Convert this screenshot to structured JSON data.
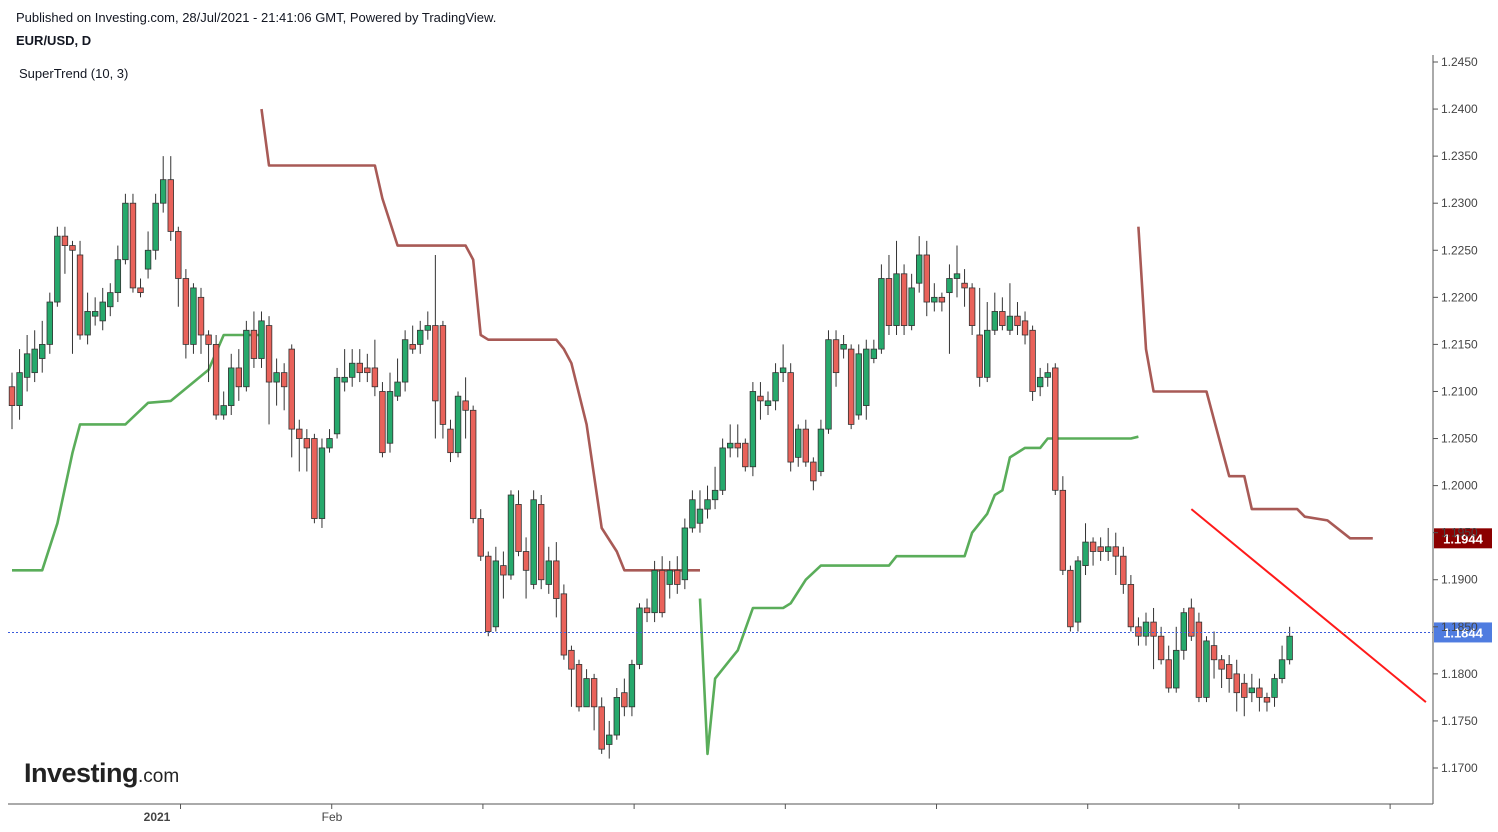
{
  "header": {
    "published": "Published on Investing.com, 28/Jul/2021 - 21:41:06 GMT, Powered by TradingView.",
    "symbol": "EUR/USD, D",
    "indicator": "SuperTrend (10, 3)"
  },
  "logo": {
    "brand": "Investing",
    "suffix": ".com"
  },
  "colors": {
    "up": "#26a96c",
    "down": "#e9625a",
    "trend_up": "#5aad5a",
    "trend_down": "#a85a56",
    "trendline": "#ff1a1a",
    "price_badge": "#4f7ce0",
    "supertrend_badge": "#8b0000"
  },
  "chart_data": {
    "type": "candlestick",
    "ylim": [
      1.1675,
      1.2455
    ],
    "y_ticks": [
      "1.2450",
      "1.2400",
      "1.2350",
      "1.2300",
      "1.2250",
      "1.2200",
      "1.2150",
      "1.2100",
      "1.2050",
      "1.2000",
      "1.1950",
      "1.1900",
      "1.1850",
      "1.1800",
      "1.1750",
      "1.1700"
    ],
    "x_labels": [
      {
        "label": "2021",
        "index": 17,
        "bold": true
      },
      {
        "label": "Feb",
        "index": 37,
        "bold": false
      }
    ],
    "last_price": "1.1844",
    "supertrend_value": "1.1944",
    "candles": [
      [
        1.2105,
        1.2085,
        1.212,
        1.206
      ],
      [
        1.2085,
        1.212,
        1.2145,
        1.207
      ],
      [
        1.2115,
        1.214,
        1.216,
        1.21
      ],
      [
        1.212,
        1.2145,
        1.2165,
        1.211
      ],
      [
        1.2135,
        1.215,
        1.2175,
        1.212
      ],
      [
        1.215,
        1.2195,
        1.2205,
        1.214
      ],
      [
        1.2195,
        1.2265,
        1.2275,
        1.219
      ],
      [
        1.2265,
        1.2255,
        1.2275,
        1.2225
      ],
      [
        1.2255,
        1.225,
        1.226,
        1.214
      ],
      [
        1.2245,
        1.216,
        1.226,
        1.2155
      ],
      [
        1.216,
        1.2185,
        1.2205,
        1.215
      ],
      [
        1.218,
        1.2185,
        1.22,
        1.217
      ],
      [
        1.2175,
        1.2195,
        1.221,
        1.2165
      ],
      [
        1.219,
        1.2205,
        1.2215,
        1.218
      ],
      [
        1.2205,
        1.224,
        1.2255,
        1.2195
      ],
      [
        1.224,
        1.23,
        1.231,
        1.2235
      ],
      [
        1.23,
        1.221,
        1.231,
        1.2205
      ],
      [
        1.221,
        1.2205,
        1.222,
        1.22
      ],
      [
        1.223,
        1.225,
        1.227,
        1.222
      ],
      [
        1.225,
        1.23,
        1.231,
        1.224
      ],
      [
        1.23,
        1.2325,
        1.235,
        1.229
      ],
      [
        1.2325,
        1.227,
        1.235,
        1.226
      ],
      [
        1.227,
        1.222,
        1.2275,
        1.219
      ],
      [
        1.222,
        1.215,
        1.223,
        1.2135
      ],
      [
        1.215,
        1.221,
        1.2215,
        1.214
      ],
      [
        1.22,
        1.216,
        1.221,
        1.214
      ],
      [
        1.216,
        1.215,
        1.2165,
        1.211
      ],
      [
        1.215,
        1.2075,
        1.216,
        1.207
      ],
      [
        1.2075,
        1.2085,
        1.21,
        1.207
      ],
      [
        1.2085,
        1.2125,
        1.214,
        1.2075
      ],
      [
        1.2125,
        1.2105,
        1.2145,
        1.209
      ],
      [
        1.2105,
        1.2165,
        1.2175,
        1.21
      ],
      [
        1.2165,
        1.2135,
        1.2185,
        1.2125
      ],
      [
        1.2135,
        1.2175,
        1.2185,
        1.2125
      ],
      [
        1.217,
        1.211,
        1.218,
        1.2065
      ],
      [
        1.211,
        1.212,
        1.2135,
        1.2085
      ],
      [
        1.212,
        1.2105,
        1.213,
        1.208
      ],
      [
        1.2145,
        1.206,
        1.215,
        1.203
      ],
      [
        1.206,
        1.205,
        1.207,
        1.2015
      ],
      [
        1.205,
        1.204,
        1.206,
        1.2015
      ],
      [
        1.205,
        1.1965,
        1.2055,
        1.196
      ],
      [
        1.1965,
        1.204,
        1.205,
        1.1955
      ],
      [
        1.204,
        1.205,
        1.206,
        1.2035
      ],
      [
        1.2055,
        1.2115,
        1.2125,
        1.205
      ],
      [
        1.211,
        1.2115,
        1.2145,
        1.21
      ],
      [
        1.2115,
        1.213,
        1.2145,
        1.2105
      ],
      [
        1.213,
        1.212,
        1.2145,
        1.211
      ],
      [
        1.2125,
        1.212,
        1.214,
        1.211
      ],
      [
        1.2125,
        1.2105,
        1.2155,
        1.2095
      ],
      [
        1.21,
        1.2035,
        1.211,
        1.203
      ],
      [
        1.2045,
        1.21,
        1.212,
        1.2035
      ],
      [
        1.2095,
        1.211,
        1.2135,
        1.209
      ],
      [
        1.211,
        1.2155,
        1.2165,
        1.21
      ],
      [
        1.215,
        1.2145,
        1.217,
        1.214
      ],
      [
        1.215,
        1.2165,
        1.2175,
        1.214
      ],
      [
        1.2165,
        1.217,
        1.2185,
        1.2155
      ],
      [
        1.217,
        1.209,
        1.2245,
        1.205
      ],
      [
        1.217,
        1.2065,
        1.2175,
        1.205
      ],
      [
        1.206,
        1.2035,
        1.207,
        1.2025
      ],
      [
        1.2035,
        1.2095,
        1.21,
        1.203
      ],
      [
        1.209,
        1.208,
        1.2115,
        1.205
      ],
      [
        1.208,
        1.1965,
        1.2085,
        1.196
      ],
      [
        1.1965,
        1.1925,
        1.1975,
        1.192
      ],
      [
        1.1925,
        1.1845,
        1.193,
        1.184
      ],
      [
        1.185,
        1.192,
        1.1935,
        1.1845
      ],
      [
        1.1915,
        1.1905,
        1.193,
        1.188
      ],
      [
        1.1905,
        1.199,
        1.1995,
        1.19
      ],
      [
        1.198,
        1.193,
        1.1995,
        1.1925
      ],
      [
        1.193,
        1.191,
        1.1945,
        1.188
      ],
      [
        1.1895,
        1.1985,
        1.1995,
        1.189
      ],
      [
        1.198,
        1.19,
        1.199,
        1.189
      ],
      [
        1.1895,
        1.192,
        1.1935,
        1.1885
      ],
      [
        1.192,
        1.188,
        1.194,
        1.186
      ],
      [
        1.1885,
        1.182,
        1.1895,
        1.1815
      ],
      [
        1.1825,
        1.1805,
        1.183,
        1.1765
      ],
      [
        1.181,
        1.1765,
        1.1815,
        1.176
      ],
      [
        1.1765,
        1.1795,
        1.1805,
        1.1765
      ],
      [
        1.1795,
        1.1765,
        1.18,
        1.174
      ],
      [
        1.1765,
        1.172,
        1.1775,
        1.1715
      ],
      [
        1.1725,
        1.1735,
        1.175,
        1.171
      ],
      [
        1.1735,
        1.1775,
        1.1785,
        1.173
      ],
      [
        1.178,
        1.1765,
        1.1795,
        1.1755
      ],
      [
        1.1765,
        1.181,
        1.1815,
        1.1755
      ],
      [
        1.181,
        1.187,
        1.1875,
        1.1805
      ],
      [
        1.187,
        1.1865,
        1.188,
        1.1855
      ],
      [
        1.1865,
        1.191,
        1.192,
        1.1855
      ],
      [
        1.191,
        1.1865,
        1.1925,
        1.186
      ],
      [
        1.1895,
        1.191,
        1.192,
        1.188
      ],
      [
        1.191,
        1.1895,
        1.1925,
        1.1885
      ],
      [
        1.19,
        1.1955,
        1.1965,
        1.189
      ],
      [
        1.1955,
        1.1985,
        1.1995,
        1.195
      ],
      [
        1.196,
        1.1975,
        1.1995,
        1.195
      ],
      [
        1.1975,
        1.1985,
        1.2,
        1.1965
      ],
      [
        1.1985,
        1.1995,
        1.202,
        1.1975
      ],
      [
        1.1995,
        1.204,
        1.205,
        1.199
      ],
      [
        1.204,
        1.2045,
        1.2065,
        1.203
      ],
      [
        1.2045,
        1.204,
        1.2065,
        1.203
      ],
      [
        1.2045,
        1.202,
        1.205,
        1.2015
      ],
      [
        1.202,
        1.21,
        1.211,
        1.201
      ],
      [
        1.2095,
        1.209,
        1.211,
        1.207
      ],
      [
        1.2085,
        1.209,
        1.21,
        1.2075
      ],
      [
        1.209,
        1.212,
        1.213,
        1.208
      ],
      [
        1.212,
        1.2125,
        1.215,
        1.211
      ],
      [
        1.212,
        1.2025,
        1.213,
        1.2015
      ],
      [
        1.203,
        1.206,
        1.2065,
        1.202
      ],
      [
        1.206,
        1.2025,
        1.207,
        1.202
      ],
      [
        1.2025,
        1.2005,
        1.203,
        1.1995
      ],
      [
        1.2015,
        1.206,
        1.207,
        1.201
      ],
      [
        1.206,
        1.2155,
        1.2165,
        1.2055
      ],
      [
        1.2155,
        1.212,
        1.2165,
        1.2105
      ],
      [
        1.2145,
        1.215,
        1.216,
        1.2135
      ],
      [
        1.2145,
        1.2065,
        1.215,
        1.206
      ],
      [
        1.2075,
        1.214,
        1.215,
        1.207
      ],
      [
        1.2085,
        1.2145,
        1.2155,
        1.207
      ],
      [
        1.2135,
        1.2145,
        1.2155,
        1.213
      ],
      [
        1.2145,
        1.222,
        1.2235,
        1.214
      ],
      [
        1.222,
        1.217,
        1.2245,
        1.216
      ],
      [
        1.217,
        1.2225,
        1.226,
        1.216
      ],
      [
        1.2225,
        1.217,
        1.2235,
        1.216
      ],
      [
        1.217,
        1.221,
        1.2225,
        1.2165
      ],
      [
        1.2215,
        1.2245,
        1.2265,
        1.2205
      ],
      [
        1.2245,
        1.2195,
        1.226,
        1.218
      ],
      [
        1.2195,
        1.22,
        1.2215,
        1.2185
      ],
      [
        1.22,
        1.2195,
        1.2205,
        1.2185
      ],
      [
        1.2205,
        1.222,
        1.2235,
        1.214
      ],
      [
        1.222,
        1.2225,
        1.2255,
        1.22
      ],
      [
        1.2215,
        1.221,
        1.223,
        1.219
      ],
      [
        1.221,
        1.217,
        1.2215,
        1.216
      ],
      [
        1.216,
        1.2115,
        1.221,
        1.2105
      ],
      [
        1.2115,
        1.2165,
        1.2195,
        1.211
      ],
      [
        1.2165,
        1.2185,
        1.2205,
        1.216
      ],
      [
        1.2185,
        1.217,
        1.22,
        1.2165
      ],
      [
        1.2165,
        1.218,
        1.2215,
        1.216
      ],
      [
        1.218,
        1.217,
        1.2195,
        1.216
      ],
      [
        1.2175,
        1.216,
        1.2185,
        1.215
      ],
      [
        1.2165,
        1.21,
        1.217,
        1.209
      ],
      [
        1.2105,
        1.2115,
        1.2125,
        1.2095
      ],
      [
        1.2115,
        1.212,
        1.213,
        1.2105
      ],
      [
        1.2125,
        1.1995,
        1.213,
        1.199
      ],
      [
        1.1995,
        1.191,
        1.201,
        1.1905
      ],
      [
        1.191,
        1.185,
        1.1915,
        1.1845
      ],
      [
        1.1855,
        1.192,
        1.1925,
        1.1845
      ],
      [
        1.1915,
        1.194,
        1.196,
        1.1905
      ],
      [
        1.194,
        1.193,
        1.1945,
        1.1915
      ],
      [
        1.1935,
        1.193,
        1.1945,
        1.192
      ],
      [
        1.193,
        1.1935,
        1.1955,
        1.192
      ],
      [
        1.1935,
        1.1925,
        1.195,
        1.1905
      ],
      [
        1.1925,
        1.1895,
        1.1935,
        1.1885
      ],
      [
        1.1895,
        1.185,
        1.1905,
        1.1845
      ],
      [
        1.185,
        1.184,
        1.186,
        1.183
      ],
      [
        1.184,
        1.1855,
        1.1865,
        1.183
      ],
      [
        1.1855,
        1.184,
        1.187,
        1.1805
      ],
      [
        1.184,
        1.1815,
        1.185,
        1.181
      ],
      [
        1.1815,
        1.1785,
        1.183,
        1.178
      ],
      [
        1.1785,
        1.1825,
        1.185,
        1.178
      ],
      [
        1.1825,
        1.1865,
        1.187,
        1.1815
      ],
      [
        1.187,
        1.184,
        1.188,
        1.1835
      ],
      [
        1.1855,
        1.1775,
        1.1865,
        1.177
      ],
      [
        1.1775,
        1.1835,
        1.184,
        1.177
      ],
      [
        1.183,
        1.1815,
        1.1845,
        1.1795
      ],
      [
        1.1815,
        1.1805,
        1.182,
        1.1785
      ],
      [
        1.181,
        1.1795,
        1.182,
        1.178
      ],
      [
        1.18,
        1.178,
        1.1815,
        1.176
      ],
      [
        1.179,
        1.1775,
        1.18,
        1.1755
      ],
      [
        1.178,
        1.1785,
        1.18,
        1.177
      ],
      [
        1.1785,
        1.1775,
        1.1795,
        1.176
      ],
      [
        1.1775,
        1.177,
        1.178,
        1.176
      ],
      [
        1.1775,
        1.1795,
        1.18,
        1.1765
      ],
      [
        1.1795,
        1.1815,
        1.183,
        1.179
      ],
      [
        1.1815,
        1.184,
        1.185,
        1.181
      ]
    ],
    "supertrend_up": [
      [
        0,
        1.191
      ],
      [
        4,
        1.191
      ],
      [
        6,
        1.196
      ],
      [
        8,
        1.2035
      ],
      [
        9,
        1.2065
      ],
      [
        11,
        1.2065
      ],
      [
        15,
        1.2065
      ],
      [
        18,
        1.2088
      ],
      [
        21,
        1.209
      ],
      [
        26,
        1.2123
      ],
      [
        28,
        1.216
      ],
      [
        33,
        1.216
      ]
    ],
    "supertrend_down": [
      [
        33,
        1.24
      ],
      [
        34,
        1.234
      ],
      [
        48,
        1.234
      ],
      [
        49,
        1.2305
      ],
      [
        50,
        1.228
      ],
      [
        51,
        1.2255
      ],
      [
        60,
        1.2255
      ],
      [
        61,
        1.224
      ],
      [
        62,
        1.216
      ],
      [
        63,
        1.2155
      ],
      [
        72,
        1.2155
      ],
      [
        73,
        1.2145
      ],
      [
        74,
        1.213
      ],
      [
        76,
        1.2065
      ],
      [
        78,
        1.1955
      ],
      [
        80,
        1.193
      ],
      [
        81,
        1.191
      ],
      [
        91,
        1.191
      ]
    ],
    "supertrend_up_2": [
      [
        91,
        1.188
      ],
      [
        92,
        1.1715
      ],
      [
        93,
        1.1795
      ],
      [
        95,
        1.1815
      ],
      [
        96,
        1.1825
      ],
      [
        98,
        1.187
      ],
      [
        102,
        1.187
      ],
      [
        103,
        1.1875
      ],
      [
        105,
        1.19
      ],
      [
        107,
        1.1915
      ],
      [
        116,
        1.1915
      ],
      [
        117,
        1.1925
      ],
      [
        126,
        1.1925
      ],
      [
        127,
        1.195
      ],
      [
        129,
        1.197
      ],
      [
        130,
        1.199
      ],
      [
        131,
        1.1995
      ],
      [
        132,
        1.203
      ],
      [
        134,
        1.204
      ],
      [
        136,
        1.204
      ],
      [
        137,
        1.205
      ],
      [
        148,
        1.205
      ],
      [
        149,
        1.2052
      ]
    ],
    "supertrend_down_2": [
      [
        149,
        1.2275
      ],
      [
        150,
        1.2145
      ],
      [
        151,
        1.21
      ],
      [
        158,
        1.21
      ],
      [
        159,
        1.207
      ],
      [
        161,
        1.201
      ],
      [
        163,
        1.201
      ],
      [
        164,
        1.1975
      ],
      [
        170,
        1.1975
      ],
      [
        171,
        1.1967
      ],
      [
        174,
        1.1963
      ],
      [
        177,
        1.1944
      ],
      [
        180,
        1.1944
      ]
    ],
    "trendline": [
      [
        156,
        1.1975
      ],
      [
        182,
        1.177
      ]
    ]
  }
}
